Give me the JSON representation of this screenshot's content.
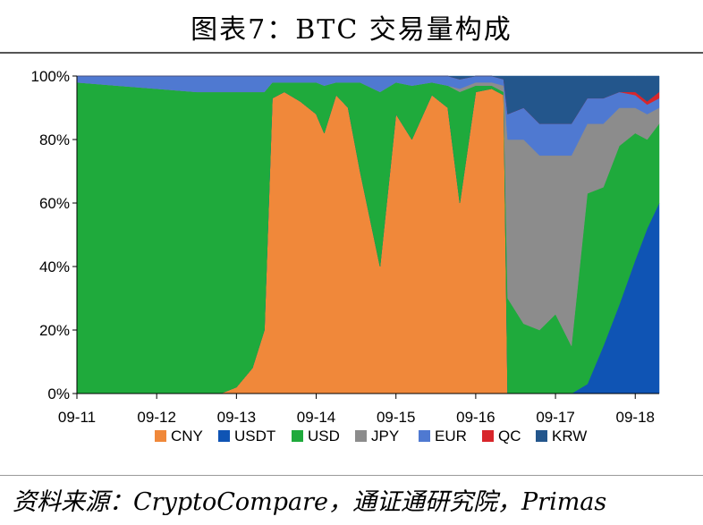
{
  "title": "图表7：BTC 交易量构成",
  "source": "资料来源：CryptoCompare，通证通研究院，Primas",
  "chart_data": {
    "type": "area",
    "stacked": true,
    "normalized": true,
    "title": "",
    "xlabel": "",
    "ylabel": "",
    "ylim": [
      0,
      100
    ],
    "yticks": [
      "0%",
      "20%",
      "40%",
      "60%",
      "80%",
      "100%"
    ],
    "xticks": [
      "09-11",
      "09-12",
      "09-13",
      "09-14",
      "09-15",
      "09-16",
      "09-17",
      "09-18"
    ],
    "x": [
      2011.0,
      2011.5,
      2012.0,
      2012.5,
      2012.8,
      2013.0,
      2013.2,
      2013.35,
      2013.45,
      2013.6,
      2013.8,
      2014.0,
      2014.1,
      2014.25,
      2014.4,
      2014.55,
      2014.8,
      2015.0,
      2015.2,
      2015.45,
      2015.65,
      2015.8,
      2016.0,
      2016.2,
      2016.35,
      2016.4,
      2016.6,
      2016.8,
      2017.0,
      2017.2,
      2017.4,
      2017.6,
      2017.8,
      2018.0,
      2018.15,
      2018.3
    ],
    "legend_position": "bottom",
    "series": [
      {
        "name": "CNY",
        "color": "#F0883A",
        "values": [
          0,
          0,
          0,
          0,
          0,
          2,
          8,
          20,
          93,
          95,
          92,
          88,
          82,
          94,
          90,
          70,
          40,
          88,
          80,
          94,
          90,
          60,
          95,
          96,
          94,
          0,
          0,
          0,
          0,
          0,
          0,
          0,
          0,
          0,
          0,
          0
        ]
      },
      {
        "name": "USDT",
        "color": "#0F54B4",
        "values": [
          0,
          0,
          0,
          0,
          0,
          0,
          0,
          0,
          0,
          0,
          0,
          0,
          0,
          0,
          0,
          0,
          0,
          0,
          0,
          0,
          0,
          0,
          0,
          0,
          0,
          0,
          0,
          0,
          0,
          0,
          3,
          15,
          28,
          42,
          52,
          60
        ]
      },
      {
        "name": "USD",
        "color": "#1FAA3C",
        "values": [
          98,
          97,
          96,
          95,
          95,
          93,
          87,
          75,
          5,
          3,
          6,
          10,
          15,
          4,
          8,
          28,
          55,
          10,
          17,
          4,
          7,
          35,
          2,
          1,
          1,
          30,
          22,
          20,
          25,
          15,
          60,
          50,
          50,
          40,
          28,
          25
        ]
      },
      {
        "name": "JPY",
        "color": "#8C8C8C",
        "values": [
          0,
          0,
          0,
          0,
          0,
          0,
          0,
          0,
          0,
          0,
          0,
          0,
          0,
          0,
          0,
          0,
          0,
          0,
          0,
          0,
          0,
          1,
          1,
          1,
          2,
          50,
          58,
          55,
          50,
          60,
          22,
          20,
          12,
          8,
          8,
          5
        ]
      },
      {
        "name": "EUR",
        "color": "#4F79D1",
        "values": [
          2,
          3,
          4,
          5,
          5,
          5,
          5,
          5,
          2,
          2,
          2,
          2,
          3,
          2,
          2,
          2,
          5,
          2,
          3,
          2,
          3,
          3,
          2,
          2,
          2,
          8,
          10,
          10,
          10,
          10,
          8,
          8,
          5,
          4,
          3,
          3
        ]
      },
      {
        "name": "QC",
        "color": "#D8262B",
        "values": [
          0,
          0,
          0,
          0,
          0,
          0,
          0,
          0,
          0,
          0,
          0,
          0,
          0,
          0,
          0,
          0,
          0,
          0,
          0,
          0,
          0,
          0,
          0,
          0,
          0,
          0,
          0,
          0,
          0,
          0,
          0,
          0,
          0,
          1,
          1,
          2
        ]
      },
      {
        "name": "KRW",
        "color": "#23568C",
        "values": [
          0,
          0,
          0,
          0,
          0,
          0,
          0,
          0,
          0,
          0,
          0,
          0,
          0,
          0,
          0,
          0,
          0,
          0,
          0,
          0,
          0,
          1,
          0,
          0,
          1,
          12,
          10,
          15,
          15,
          15,
          7,
          7,
          5,
          5,
          8,
          5
        ]
      }
    ]
  }
}
